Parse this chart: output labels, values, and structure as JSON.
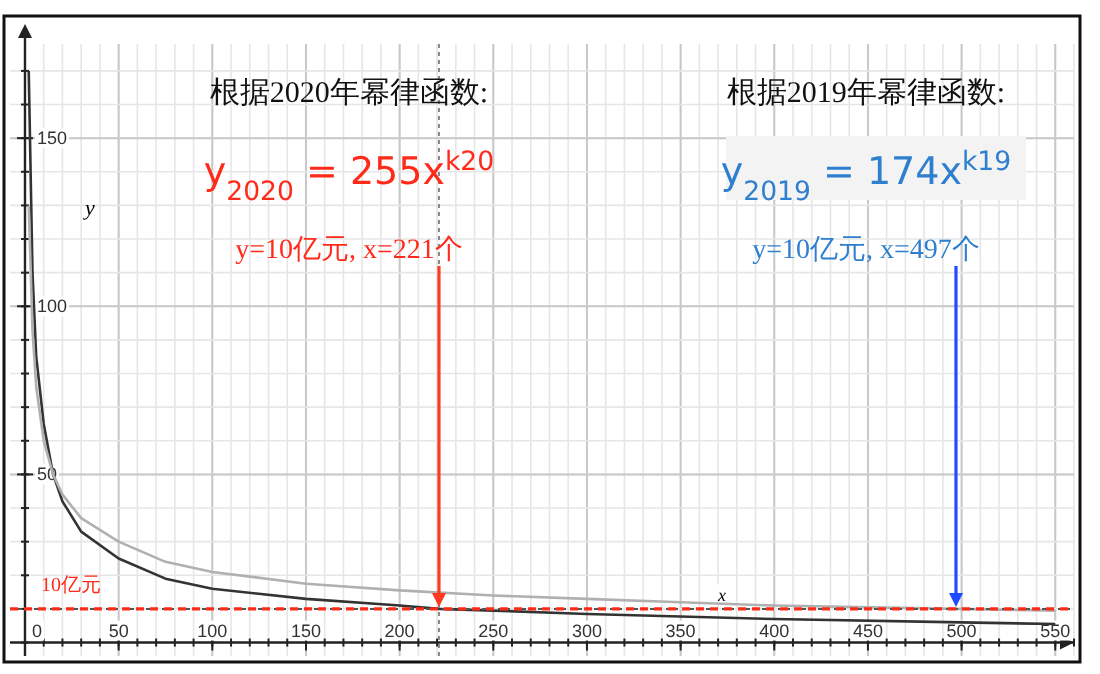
{
  "chart_data": {
    "type": "line",
    "xlabel": "x",
    "ylabel": "y",
    "xlim": [
      -8,
      560
    ],
    "ylim": [
      -4,
      178
    ],
    "xticks": [
      0,
      50,
      100,
      150,
      200,
      250,
      300,
      350,
      400,
      450,
      500,
      550
    ],
    "yticks": [
      50,
      100,
      150
    ],
    "grid": true,
    "series": [
      {
        "color": "#333333",
        "x": [
          2,
          4,
          6,
          10,
          15,
          20,
          30,
          50,
          75,
          100,
          150,
          200,
          221,
          250,
          300,
          400,
          500,
          550
        ],
        "values": [
          170,
          110,
          85,
          65,
          50,
          42,
          33,
          25,
          19,
          16,
          13,
          11,
          10,
          9.5,
          8.5,
          7,
          6,
          5.5
        ]
      },
      {
        "color": "#b0b0b0",
        "x": [
          2,
          4,
          6,
          10,
          15,
          20,
          30,
          50,
          75,
          100,
          150,
          200,
          250,
          300,
          350,
          400,
          497,
          550
        ],
        "values": [
          130,
          93,
          76,
          60,
          50,
          44,
          37,
          30,
          24,
          21,
          17.5,
          15.5,
          14,
          13,
          12,
          11,
          10,
          9.5
        ]
      }
    ],
    "ref_lines": [
      {
        "axis": "y",
        "value": 10,
        "color": "#555555",
        "line_style": "dotted"
      },
      {
        "axis": "x",
        "value": 221,
        "color": "#888888",
        "line_style": "dotted"
      },
      {
        "axis": "y",
        "value": 10,
        "label": "10亿元",
        "color": "#ff2a1a",
        "line_style": "dashed"
      }
    ],
    "annotations": [
      "根据2020年幂律函数:",
      "y$_{2020}$ = 255x$^{k20}$",
      {
        "text": "y=10亿元, x=221个",
        "x": 221,
        "y": 10
      },
      "根据2019年幂律函数:",
      "y$_{2019}$ = 174x$^{k19}$",
      {
        "text": "y=10亿元, x=497个",
        "x": 497,
        "y": 10
      }
    ]
  }
}
